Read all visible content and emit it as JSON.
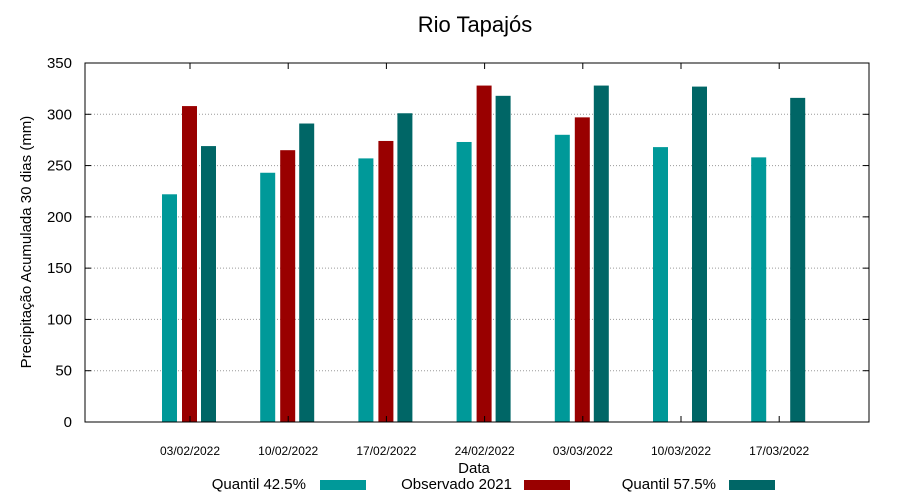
{
  "chart_data": {
    "type": "bar",
    "title": "Rio Tapajós",
    "xlabel": "Data",
    "ylabel": "Precipitação Acumulada 30 dias (mm)",
    "ylim": [
      0,
      350
    ],
    "yticks": [
      0,
      50,
      100,
      150,
      200,
      250,
      300,
      350
    ],
    "grid": true,
    "legend_position": "bottom",
    "categories": [
      "03/02/2022",
      "10/02/2022",
      "17/02/2022",
      "24/02/2022",
      "03/03/2022",
      "10/03/2022",
      "17/03/2022"
    ],
    "series": [
      {
        "name": "Quantil 42.5%",
        "color": "#009999",
        "values": [
          222,
          243,
          257,
          273,
          280,
          268,
          258
        ]
      },
      {
        "name": "Observado 2021",
        "color": "#990000",
        "values": [
          308,
          265,
          274,
          328,
          297,
          null,
          null
        ]
      },
      {
        "name": "Quantil 57.5%",
        "color": "#006666",
        "values": [
          269,
          291,
          301,
          318,
          328,
          327,
          316
        ]
      }
    ]
  }
}
